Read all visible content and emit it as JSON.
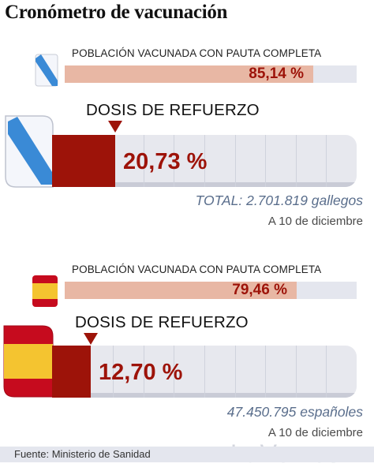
{
  "title": "Cronómetro de vacunación",
  "colors": {
    "booster_fill": "#9d1309",
    "full_fill": "#e8b7a4",
    "track": "#e4e6ee",
    "galicia_blue": "#3a8ad6",
    "spain_red": "#c60b1e",
    "spain_yellow": "#f4c430"
  },
  "chart_data": [
    {
      "type": "bar",
      "region": "Galicia",
      "full_vaccination": {
        "label": "POBLACIÓN VACUNADA CON PAUTA COMPLETA",
        "value": 85.14,
        "value_text": "85,14 %"
      },
      "booster": {
        "label": "DOSIS DE REFUERZO",
        "value": 20.73,
        "value_text": "20,73 %"
      },
      "total": "TOTAL: 2.701.819 gallegos",
      "date": "A 10 de diciembre",
      "icon": "galicia-flag-icon",
      "ylim": [
        0,
        100
      ]
    },
    {
      "type": "bar",
      "region": "España",
      "full_vaccination": {
        "label": "POBLACIÓN VACUNADA CON PAUTA COMPLETA",
        "value": 79.46,
        "value_text": "79,46 %"
      },
      "booster": {
        "label": "DOSIS DE REFUERZO",
        "value": 12.7,
        "value_text": "12,70 %"
      },
      "total": "47.450.795 españoles",
      "date": "A 10 de diciembre",
      "icon": "spain-flag-icon",
      "ylim": [
        0,
        100
      ]
    }
  ],
  "footer": {
    "source": "Fuente: Ministerio de Sanidad",
    "brand": "LaVoz.es"
  }
}
